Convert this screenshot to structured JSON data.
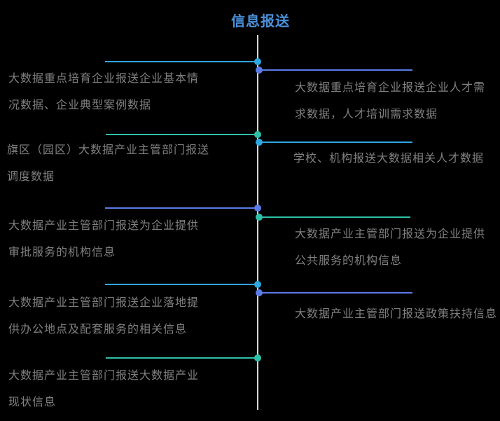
{
  "diagram": {
    "title": "信息报送",
    "title_color": "#4A90D9",
    "background_color": "#000000",
    "spine_color": "#D8D6D3",
    "text_color": "#808080",
    "palette": {
      "sky": "#2EA6E0",
      "indigo": "#5B7BE9",
      "teal": "#2EC0A9"
    },
    "branches": [
      {
        "side": "left",
        "color": "sky",
        "lines": [
          "大数据重点培育企业报送企业基本情",
          "况数据、企业典型案例数据"
        ]
      },
      {
        "side": "right",
        "color": "indigo",
        "lines": [
          "大数据重点培育企业报送企业人才需",
          "求数据，人才培训需求数据"
        ]
      },
      {
        "side": "left",
        "color": "teal",
        "lines": [
          "旗区（园区）大数据产业主管部门报送",
          "调度数据"
        ]
      },
      {
        "side": "right",
        "color": "sky",
        "lines": [
          "学校、机构报送大数据相关人才数据"
        ]
      },
      {
        "side": "left",
        "color": "indigo",
        "lines": [
          "大数据产业主管部门报送为企业提供",
          "审批服务的机构信息"
        ]
      },
      {
        "side": "right",
        "color": "teal",
        "lines": [
          "大数据产业主管部门报送为企业提供",
          "公共服务的机构信息"
        ]
      },
      {
        "side": "left",
        "color": "sky",
        "lines": [
          "大数据产业主管部门报送企业落地提",
          "供办公地点及配套服务的相关信息"
        ]
      },
      {
        "side": "right",
        "color": "indigo",
        "lines": [
          "大数据产业主管部门报送政策扶持信息"
        ]
      },
      {
        "side": "left",
        "color": "teal",
        "lines": [
          "大数据产业主管部门报送大数据产业",
          "现状信息"
        ]
      }
    ]
  }
}
